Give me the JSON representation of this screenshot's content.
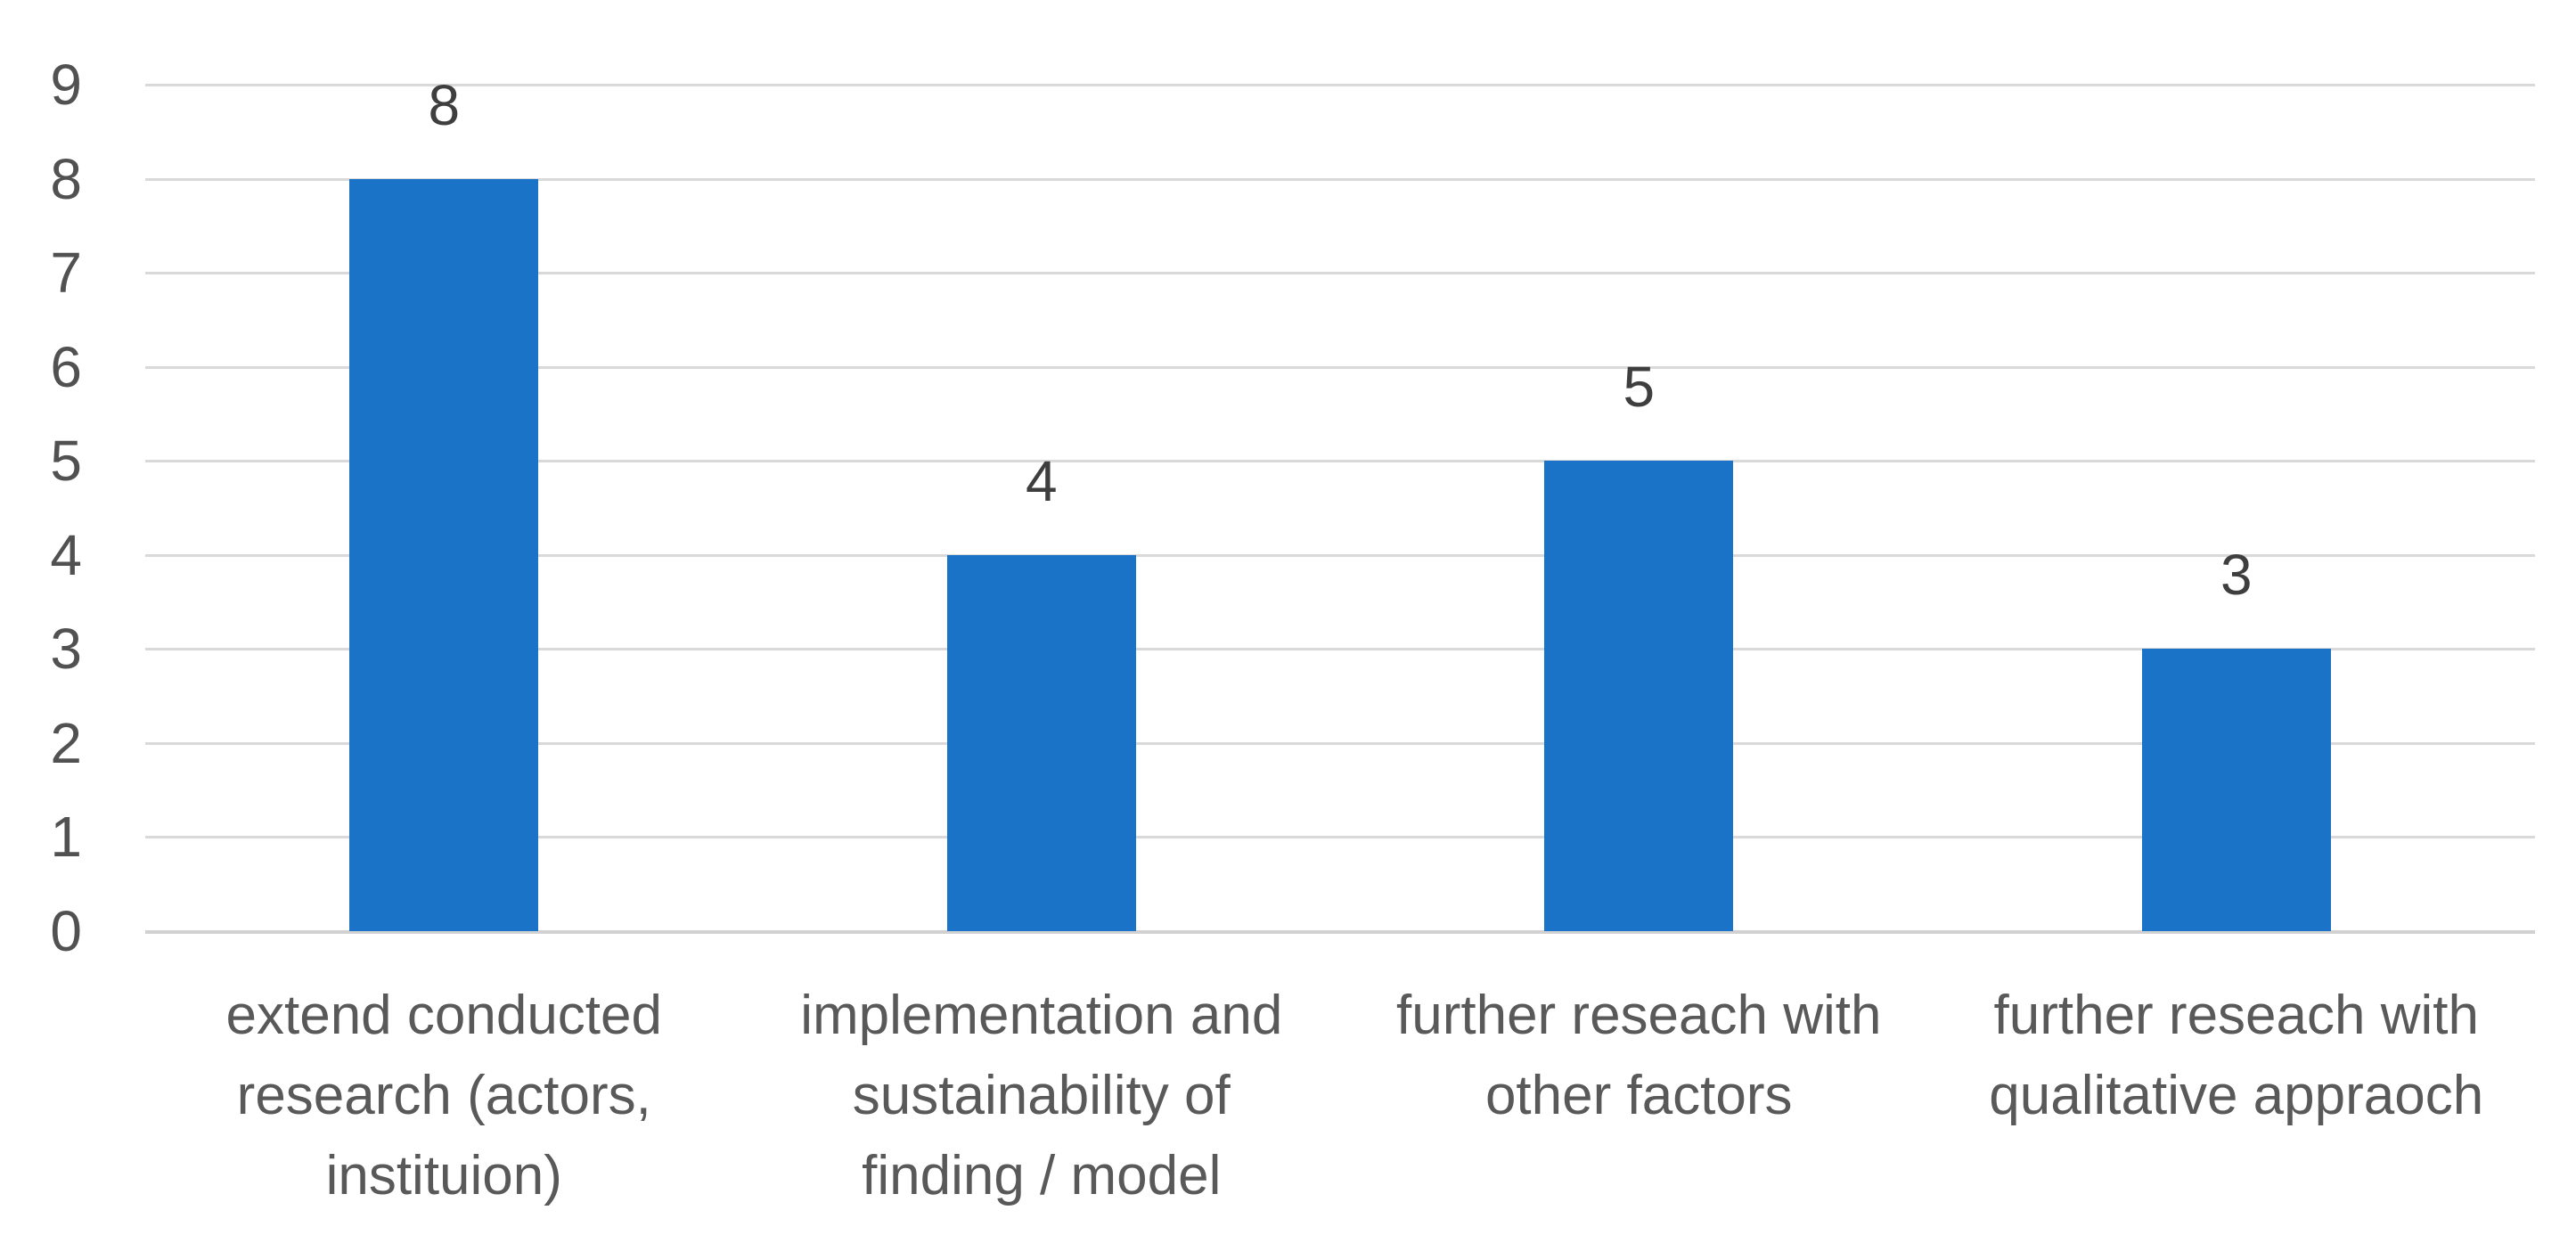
{
  "chart_data": {
    "type": "bar",
    "title": "",
    "xlabel": "",
    "ylabel": "",
    "categories": [
      "extend conducted research (actors, instituion)",
      "implementation and sustainability of finding / model",
      "further reseach with other factors",
      "further reseach with qualitative appraoch"
    ],
    "category_lines": [
      [
        "extend conducted",
        "research (actors,",
        "instituion)"
      ],
      [
        "implementation and",
        "sustainability of",
        "finding / model"
      ],
      [
        "further reseach with",
        "other factors"
      ],
      [
        "further reseach with",
        "qualitative appraoch"
      ]
    ],
    "values": [
      8,
      4,
      5,
      3
    ],
    "data_labels": [
      "8",
      "4",
      "5",
      "3"
    ],
    "ylim": [
      0,
      9
    ],
    "yticks": [
      0,
      1,
      2,
      3,
      4,
      5,
      6,
      7,
      8,
      9
    ],
    "grid": "horizontal-only",
    "legend": "none",
    "colors": {
      "bar": "#1B73C7",
      "gridline": "#D9D9D9",
      "axis_line": "#D1D1D1",
      "axis_tick_label": "#515151",
      "category_label": "#595959",
      "data_label": "#3E3E3E",
      "background": "#FFFFFF"
    }
  }
}
